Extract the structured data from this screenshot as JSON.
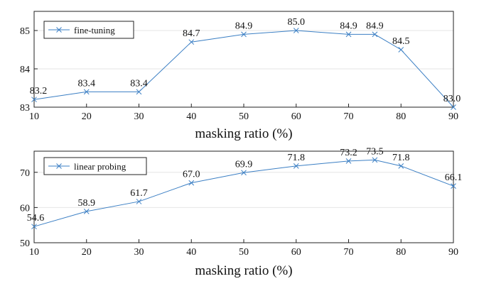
{
  "chart_data": [
    {
      "type": "line",
      "x": [
        10,
        20,
        30,
        40,
        50,
        60,
        70,
        75,
        80,
        90
      ],
      "series": [
        {
          "name": "fine-tuning",
          "values": [
            83.2,
            83.4,
            83.4,
            84.7,
            84.9,
            85.0,
            84.9,
            84.9,
            84.5,
            83.0
          ]
        }
      ],
      "data_labels": [
        "83.2",
        "83.4",
        "83.4",
        "84.7",
        "84.9",
        "85.0",
        "84.9",
        "84.9",
        "84.5",
        "83.0"
      ],
      "xlabel": "masking ratio (%)",
      "ylabel": "",
      "xlim": [
        10,
        90
      ],
      "ylim": [
        83,
        85.5
      ],
      "xticks": [
        10,
        20,
        30,
        40,
        50,
        60,
        70,
        80,
        90
      ],
      "yticks": [
        83,
        84,
        85
      ],
      "grid": "horizontal",
      "legend": "top-left",
      "marker": "x",
      "color": "#3b7fc4"
    },
    {
      "type": "line",
      "x": [
        10,
        20,
        30,
        40,
        50,
        60,
        70,
        75,
        80,
        90
      ],
      "series": [
        {
          "name": "linear probing",
          "values": [
            54.6,
            58.9,
            61.7,
            67.0,
            69.9,
            71.8,
            73.2,
            73.5,
            71.8,
            66.1
          ]
        }
      ],
      "data_labels": [
        "54.6",
        "58.9",
        "61.7",
        "67.0",
        "69.9",
        "71.8",
        "73.2",
        "73.5",
        "71.8",
        "66.1"
      ],
      "xlabel": "masking ratio (%)",
      "ylabel": "",
      "xlim": [
        10,
        90
      ],
      "ylim": [
        50,
        76
      ],
      "xticks": [
        10,
        20,
        30,
        40,
        50,
        60,
        70,
        80,
        90
      ],
      "yticks": [
        50,
        60,
        70
      ],
      "grid": "horizontal",
      "legend": "top-left",
      "marker": "x",
      "color": "#3b7fc4"
    }
  ]
}
